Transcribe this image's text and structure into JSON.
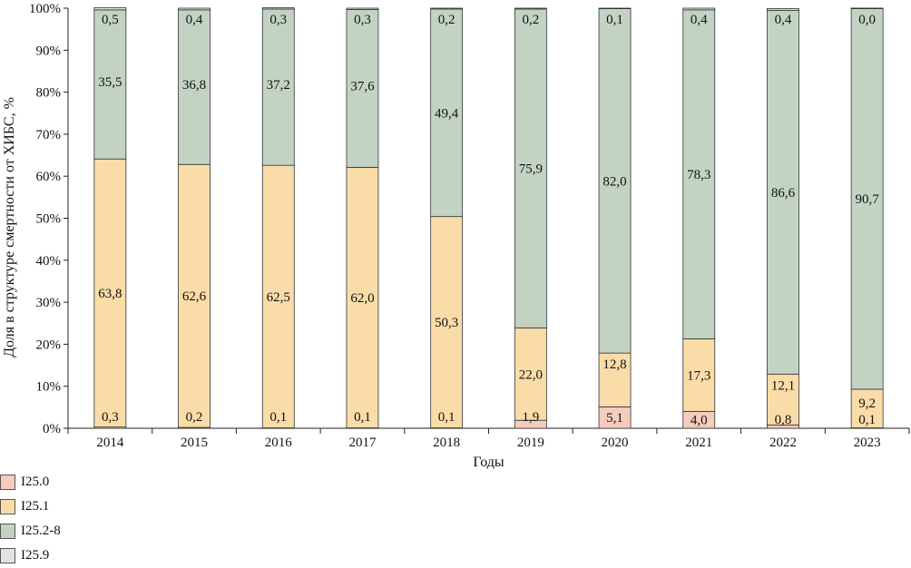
{
  "chart_data": {
    "type": "bar",
    "stacked": true,
    "categories": [
      "2014",
      "2015",
      "2016",
      "2017",
      "2018",
      "2019",
      "2020",
      "2021",
      "2022",
      "2023"
    ],
    "series": [
      {
        "name": "I25.0",
        "color": "#f7cbbf",
        "values": [
          0.3,
          0.2,
          0.1,
          0.1,
          0.1,
          1.9,
          5.1,
          4.0,
          0.8,
          0.1
        ],
        "labels": [
          "0,3",
          "0,2",
          "0,1",
          "0,1",
          "0,1",
          "1,9",
          "5,1",
          "4,0",
          "0,8",
          "0,1"
        ]
      },
      {
        "name": "I25.1",
        "color": "#f9dca8",
        "values": [
          63.8,
          62.6,
          62.5,
          62.0,
          50.3,
          22.0,
          12.8,
          17.3,
          12.1,
          9.2
        ],
        "labels": [
          "63,8",
          "62,6",
          "62,5",
          "62,0",
          "50,3",
          "22,0",
          "12,8",
          "17,3",
          "12,1",
          "9,2"
        ]
      },
      {
        "name": "I25.2-8",
        "color": "#c2d3c4",
        "values": [
          35.5,
          36.8,
          37.2,
          37.6,
          49.4,
          75.9,
          82.0,
          78.3,
          86.6,
          90.7
        ],
        "labels": [
          "35,5",
          "36,8",
          "37,2",
          "37,6",
          "49,4",
          "75,9",
          "82,0",
          "78,3",
          "86,6",
          "90,7"
        ]
      },
      {
        "name": "I25.9",
        "color": "#e2e2e2",
        "values": [
          0.5,
          0.4,
          0.3,
          0.3,
          0.2,
          0.2,
          0.1,
          0.4,
          0.4,
          0.0
        ],
        "labels": [
          "0,5",
          "0,4",
          "0,3",
          "0,3",
          "0,2",
          "0,2",
          "0,1",
          "0,4",
          "0,4",
          "0,0"
        ]
      }
    ],
    "ylim": [
      0,
      100
    ],
    "yticks": [
      "0%",
      "10%",
      "20%",
      "30%",
      "40%",
      "50%",
      "60%",
      "70%",
      "80%",
      "90%",
      "100%"
    ],
    "xlabel": "Годы",
    "ylabel": "Доля в структуре смертности от ХИБС, %",
    "legend_position": "bottom-left",
    "grid": false
  }
}
